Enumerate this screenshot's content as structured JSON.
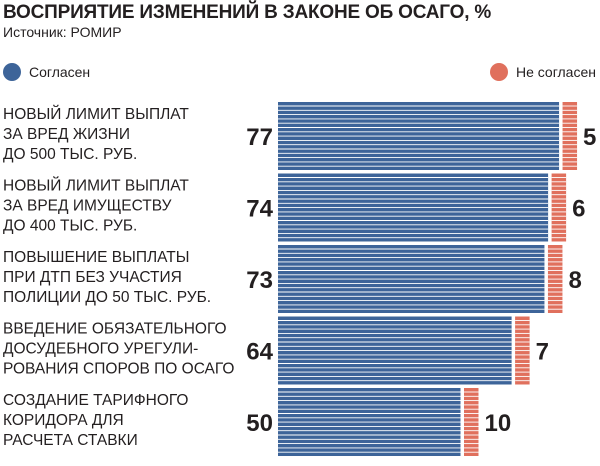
{
  "header": {
    "title": "ВОСПРИЯТИЕ ИЗМЕНЕНИЙ В ЗАКОНЕ ОБ ОСАГО, %",
    "source": "Источник: РОМИР"
  },
  "colors": {
    "agree": "#3d6499",
    "disagree": "#e0705d",
    "text": "#231f20"
  },
  "chart_data": {
    "type": "bar",
    "title": "ВОСПРИЯТИЕ ИЗМЕНЕНИЙ В ЗАКОНЕ ОБ ОСАГО, %",
    "orientation": "horizontal",
    "legend_position": "top",
    "grid": false,
    "categories": [
      [
        "НОВЫЙ ЛИМИТ ВЫПЛАТ",
        "ЗА ВРЕД ЖИЗНИ",
        "ДО 500 ТЫС. РУБ."
      ],
      [
        "НОВЫЙ ЛИМИТ ВЫПЛАТ",
        "ЗА ВРЕД ИМУЩЕСТВУ",
        "ДО 400 ТЫС. РУБ."
      ],
      [
        "ПОВЫШЕНИЕ ВЫПЛАТЫ",
        "ПРИ ДТП БЕЗ УЧАСТИЯ",
        "ПОЛИЦИИ ДО 50 ТЫС. РУБ."
      ],
      [
        "ВВЕДЕНИЕ ОБЯЗАТЕЛЬНОГО",
        "ДОСУДЕБНОГО УРЕГУЛИ-",
        "РОВАНИЯ СПОРОВ ПО ОСАГО"
      ],
      [
        "СОЗДАНИЕ ТАРИФНОГО",
        "КОРИДОРА ДЛЯ",
        "РАСЧЕТА СТАВКИ"
      ]
    ],
    "series": [
      {
        "name": "Согласен",
        "color": "#3d6499",
        "values": [
          77,
          74,
          73,
          64,
          50
        ]
      },
      {
        "name": "Не согласен",
        "color": "#e0705d",
        "values": [
          5,
          6,
          8,
          7,
          10
        ]
      }
    ]
  }
}
